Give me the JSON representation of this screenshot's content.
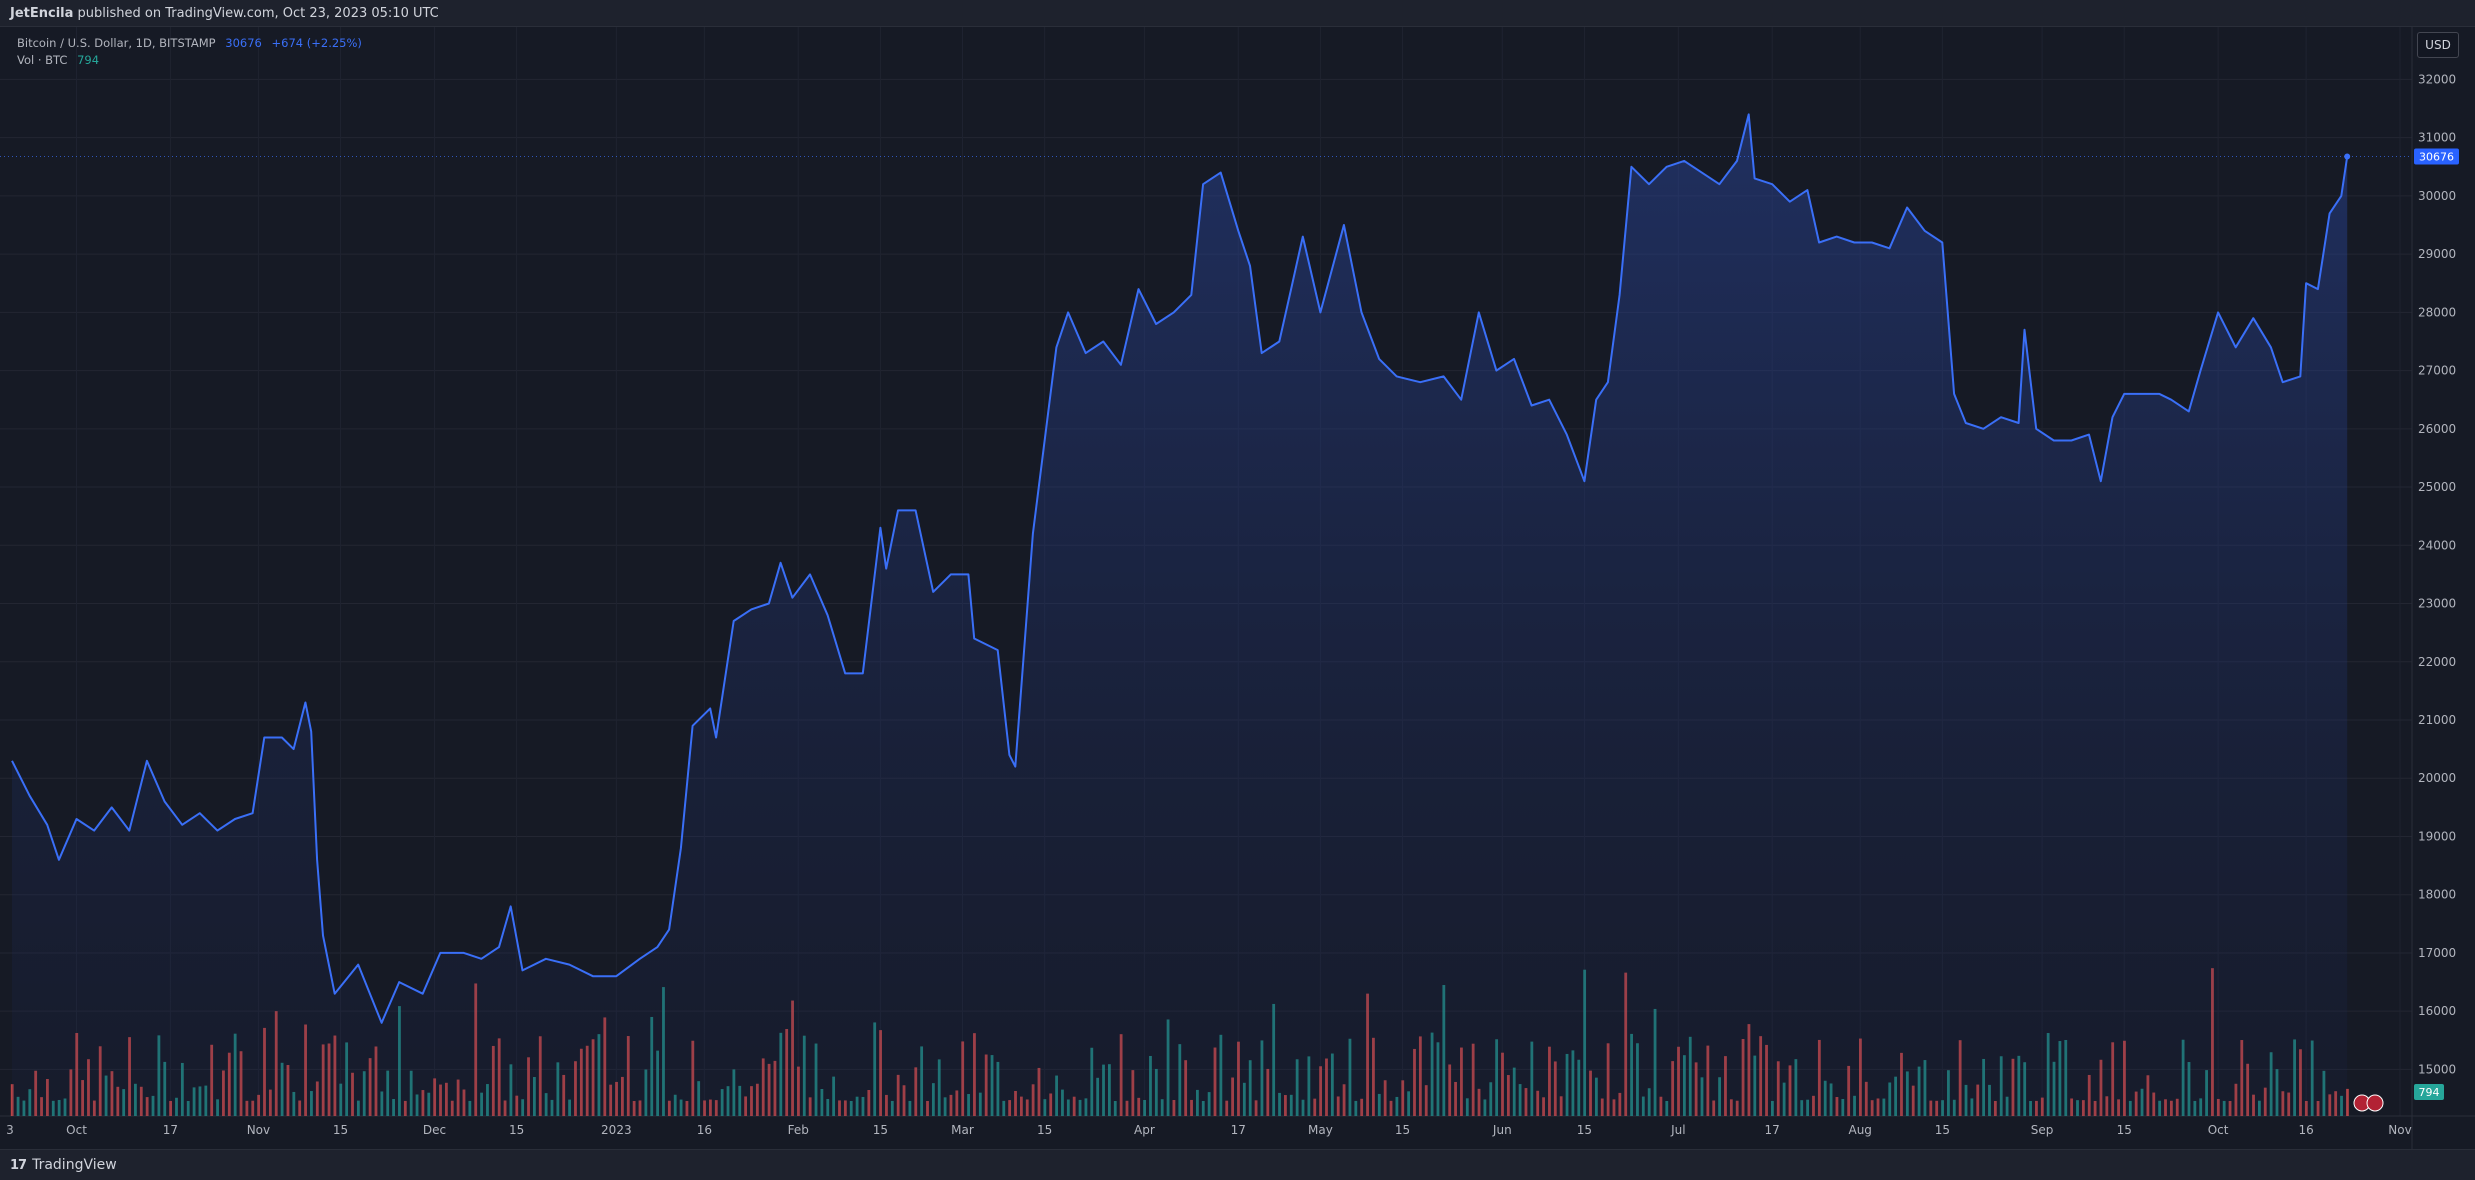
{
  "header": {
    "author": "JetEncila",
    "published_text": "published on TradingView.com, Oct 23, 2023 05:10 UTC"
  },
  "legend": {
    "symbol": "Bitcoin / U.S. Dollar, 1D, BITSTAMP",
    "last": "30676",
    "change": "+674 (+2.25%)",
    "volume_label": "Vol · BTC",
    "volume_value": "794"
  },
  "currency_button": "USD",
  "footer": {
    "brand": "TradingView"
  },
  "colors": {
    "line": "#3a6ff7",
    "up_volume": "#26a69a",
    "down_volume": "#ef5350",
    "price_badge": "#2962ff",
    "volume_badge": "#26a69a"
  },
  "chart_data": {
    "type": "area",
    "title": "Bitcoin / U.S. Dollar, 1D, BITSTAMP",
    "xlabel": "",
    "ylabel": "",
    "ylim": [
      14200,
      32900
    ],
    "grid": true,
    "y_ticks": [
      15000,
      16000,
      17000,
      18000,
      19000,
      20000,
      21000,
      22000,
      23000,
      24000,
      25000,
      26000,
      27000,
      28000,
      29000,
      30000,
      31000,
      32000
    ],
    "x_ticks": [
      "Oct",
      "17",
      "Nov",
      "15",
      "Dec",
      "15",
      "2023",
      "16",
      "Feb",
      "15",
      "Mar",
      "15",
      "Apr",
      "17",
      "May",
      "15",
      "Jun",
      "15",
      "Jul",
      "17",
      "Aug",
      "15",
      "Sep",
      "15",
      "Oct",
      "16",
      "Nov"
    ],
    "price_label": "30676",
    "volume_label": "794",
    "price_series": [
      {
        "date": "2022-09-20",
        "close": 20300
      },
      {
        "date": "2022-09-23",
        "close": 19700
      },
      {
        "date": "2022-09-26",
        "close": 19200
      },
      {
        "date": "2022-09-28",
        "close": 18600
      },
      {
        "date": "2022-10-01",
        "close": 19300
      },
      {
        "date": "2022-10-04",
        "close": 19100
      },
      {
        "date": "2022-10-07",
        "close": 19500
      },
      {
        "date": "2022-10-10",
        "close": 19100
      },
      {
        "date": "2022-10-13",
        "close": 20300
      },
      {
        "date": "2022-10-16",
        "close": 19600
      },
      {
        "date": "2022-10-19",
        "close": 19200
      },
      {
        "date": "2022-10-22",
        "close": 19400
      },
      {
        "date": "2022-10-25",
        "close": 19100
      },
      {
        "date": "2022-10-28",
        "close": 19300
      },
      {
        "date": "2022-10-31",
        "close": 19400
      },
      {
        "date": "2022-11-02",
        "close": 20700
      },
      {
        "date": "2022-11-05",
        "close": 20700
      },
      {
        "date": "2022-11-07",
        "close": 20500
      },
      {
        "date": "2022-11-09",
        "close": 21300
      },
      {
        "date": "2022-11-10",
        "close": 20800
      },
      {
        "date": "2022-11-11",
        "close": 18600
      },
      {
        "date": "2022-11-12",
        "close": 17300
      },
      {
        "date": "2022-11-14",
        "close": 16300
      },
      {
        "date": "2022-11-18",
        "close": 16800
      },
      {
        "date": "2022-11-22",
        "close": 15800
      },
      {
        "date": "2022-11-25",
        "close": 16500
      },
      {
        "date": "2022-11-29",
        "close": 16300
      },
      {
        "date": "2022-12-02",
        "close": 17000
      },
      {
        "date": "2022-12-06",
        "close": 17000
      },
      {
        "date": "2022-12-09",
        "close": 16900
      },
      {
        "date": "2022-12-12",
        "close": 17100
      },
      {
        "date": "2022-12-14",
        "close": 17800
      },
      {
        "date": "2022-12-16",
        "close": 16700
      },
      {
        "date": "2022-12-20",
        "close": 16900
      },
      {
        "date": "2022-12-24",
        "close": 16800
      },
      {
        "date": "2022-12-28",
        "close": 16600
      },
      {
        "date": "2023-01-01",
        "close": 16600
      },
      {
        "date": "2023-01-05",
        "close": 16900
      },
      {
        "date": "2023-01-08",
        "close": 17100
      },
      {
        "date": "2023-01-10",
        "close": 17400
      },
      {
        "date": "2023-01-12",
        "close": 18800
      },
      {
        "date": "2023-01-14",
        "close": 20900
      },
      {
        "date": "2023-01-17",
        "close": 21200
      },
      {
        "date": "2023-01-18",
        "close": 20700
      },
      {
        "date": "2023-01-21",
        "close": 22700
      },
      {
        "date": "2023-01-24",
        "close": 22900
      },
      {
        "date": "2023-01-27",
        "close": 23000
      },
      {
        "date": "2023-01-29",
        "close": 23700
      },
      {
        "date": "2023-01-31",
        "close": 23100
      },
      {
        "date": "2023-02-03",
        "close": 23500
      },
      {
        "date": "2023-02-06",
        "close": 22800
      },
      {
        "date": "2023-02-09",
        "close": 21800
      },
      {
        "date": "2023-02-12",
        "close": 21800
      },
      {
        "date": "2023-02-15",
        "close": 24300
      },
      {
        "date": "2023-02-16",
        "close": 23600
      },
      {
        "date": "2023-02-18",
        "close": 24600
      },
      {
        "date": "2023-02-21",
        "close": 24600
      },
      {
        "date": "2023-02-24",
        "close": 23200
      },
      {
        "date": "2023-02-27",
        "close": 23500
      },
      {
        "date": "2023-03-02",
        "close": 23500
      },
      {
        "date": "2023-03-03",
        "close": 22400
      },
      {
        "date": "2023-03-07",
        "close": 22200
      },
      {
        "date": "2023-03-09",
        "close": 20400
      },
      {
        "date": "2023-03-10",
        "close": 20200
      },
      {
        "date": "2023-03-13",
        "close": 24200
      },
      {
        "date": "2023-03-17",
        "close": 27400
      },
      {
        "date": "2023-03-19",
        "close": 28000
      },
      {
        "date": "2023-03-22",
        "close": 27300
      },
      {
        "date": "2023-03-25",
        "close": 27500
      },
      {
        "date": "2023-03-28",
        "close": 27100
      },
      {
        "date": "2023-03-31",
        "close": 28400
      },
      {
        "date": "2023-04-03",
        "close": 27800
      },
      {
        "date": "2023-04-06",
        "close": 28000
      },
      {
        "date": "2023-04-09",
        "close": 28300
      },
      {
        "date": "2023-04-11",
        "close": 30200
      },
      {
        "date": "2023-04-14",
        "close": 30400
      },
      {
        "date": "2023-04-17",
        "close": 29400
      },
      {
        "date": "2023-04-19",
        "close": 28800
      },
      {
        "date": "2023-04-21",
        "close": 27300
      },
      {
        "date": "2023-04-24",
        "close": 27500
      },
      {
        "date": "2023-04-26",
        "close": 28400
      },
      {
        "date": "2023-04-28",
        "close": 29300
      },
      {
        "date": "2023-05-01",
        "close": 28000
      },
      {
        "date": "2023-05-05",
        "close": 29500
      },
      {
        "date": "2023-05-08",
        "close": 28000
      },
      {
        "date": "2023-05-11",
        "close": 27200
      },
      {
        "date": "2023-05-14",
        "close": 26900
      },
      {
        "date": "2023-05-18",
        "close": 26800
      },
      {
        "date": "2023-05-22",
        "close": 26900
      },
      {
        "date": "2023-05-25",
        "close": 26500
      },
      {
        "date": "2023-05-28",
        "close": 28000
      },
      {
        "date": "2023-05-31",
        "close": 27000
      },
      {
        "date": "2023-06-03",
        "close": 27200
      },
      {
        "date": "2023-06-06",
        "close": 26400
      },
      {
        "date": "2023-06-09",
        "close": 26500
      },
      {
        "date": "2023-06-12",
        "close": 25900
      },
      {
        "date": "2023-06-15",
        "close": 25100
      },
      {
        "date": "2023-06-17",
        "close": 26500
      },
      {
        "date": "2023-06-19",
        "close": 26800
      },
      {
        "date": "2023-06-21",
        "close": 28300
      },
      {
        "date": "2023-06-23",
        "close": 30500
      },
      {
        "date": "2023-06-26",
        "close": 30200
      },
      {
        "date": "2023-06-29",
        "close": 30500
      },
      {
        "date": "2023-07-02",
        "close": 30600
      },
      {
        "date": "2023-07-05",
        "close": 30400
      },
      {
        "date": "2023-07-08",
        "close": 30200
      },
      {
        "date": "2023-07-11",
        "close": 30600
      },
      {
        "date": "2023-07-13",
        "close": 31400
      },
      {
        "date": "2023-07-14",
        "close": 30300
      },
      {
        "date": "2023-07-17",
        "close": 30200
      },
      {
        "date": "2023-07-20",
        "close": 29900
      },
      {
        "date": "2023-07-23",
        "close": 30100
      },
      {
        "date": "2023-07-25",
        "close": 29200
      },
      {
        "date": "2023-07-28",
        "close": 29300
      },
      {
        "date": "2023-07-31",
        "close": 29200
      },
      {
        "date": "2023-08-03",
        "close": 29200
      },
      {
        "date": "2023-08-06",
        "close": 29100
      },
      {
        "date": "2023-08-09",
        "close": 29800
      },
      {
        "date": "2023-08-12",
        "close": 29400
      },
      {
        "date": "2023-08-15",
        "close": 29200
      },
      {
        "date": "2023-08-17",
        "close": 26600
      },
      {
        "date": "2023-08-19",
        "close": 26100
      },
      {
        "date": "2023-08-22",
        "close": 26000
      },
      {
        "date": "2023-08-25",
        "close": 26200
      },
      {
        "date": "2023-08-28",
        "close": 26100
      },
      {
        "date": "2023-08-29",
        "close": 27700
      },
      {
        "date": "2023-08-31",
        "close": 26000
      },
      {
        "date": "2023-09-03",
        "close": 25800
      },
      {
        "date": "2023-09-06",
        "close": 25800
      },
      {
        "date": "2023-09-09",
        "close": 25900
      },
      {
        "date": "2023-09-11",
        "close": 25100
      },
      {
        "date": "2023-09-13",
        "close": 26200
      },
      {
        "date": "2023-09-15",
        "close": 26600
      },
      {
        "date": "2023-09-18",
        "close": 26600
      },
      {
        "date": "2023-09-21",
        "close": 26600
      },
      {
        "date": "2023-09-23",
        "close": 26500
      },
      {
        "date": "2023-09-26",
        "close": 26300
      },
      {
        "date": "2023-09-28",
        "close": 27000
      },
      {
        "date": "2023-10-01",
        "close": 28000
      },
      {
        "date": "2023-10-04",
        "close": 27400
      },
      {
        "date": "2023-10-07",
        "close": 27900
      },
      {
        "date": "2023-10-10",
        "close": 27400
      },
      {
        "date": "2023-10-12",
        "close": 26800
      },
      {
        "date": "2023-10-15",
        "close": 26900
      },
      {
        "date": "2023-10-16",
        "close": 28500
      },
      {
        "date": "2023-10-18",
        "close": 28400
      },
      {
        "date": "2023-10-20",
        "close": 29700
      },
      {
        "date": "2023-10-22",
        "close": 30000
      },
      {
        "date": "2023-10-23",
        "close": 30676
      }
    ]
  }
}
